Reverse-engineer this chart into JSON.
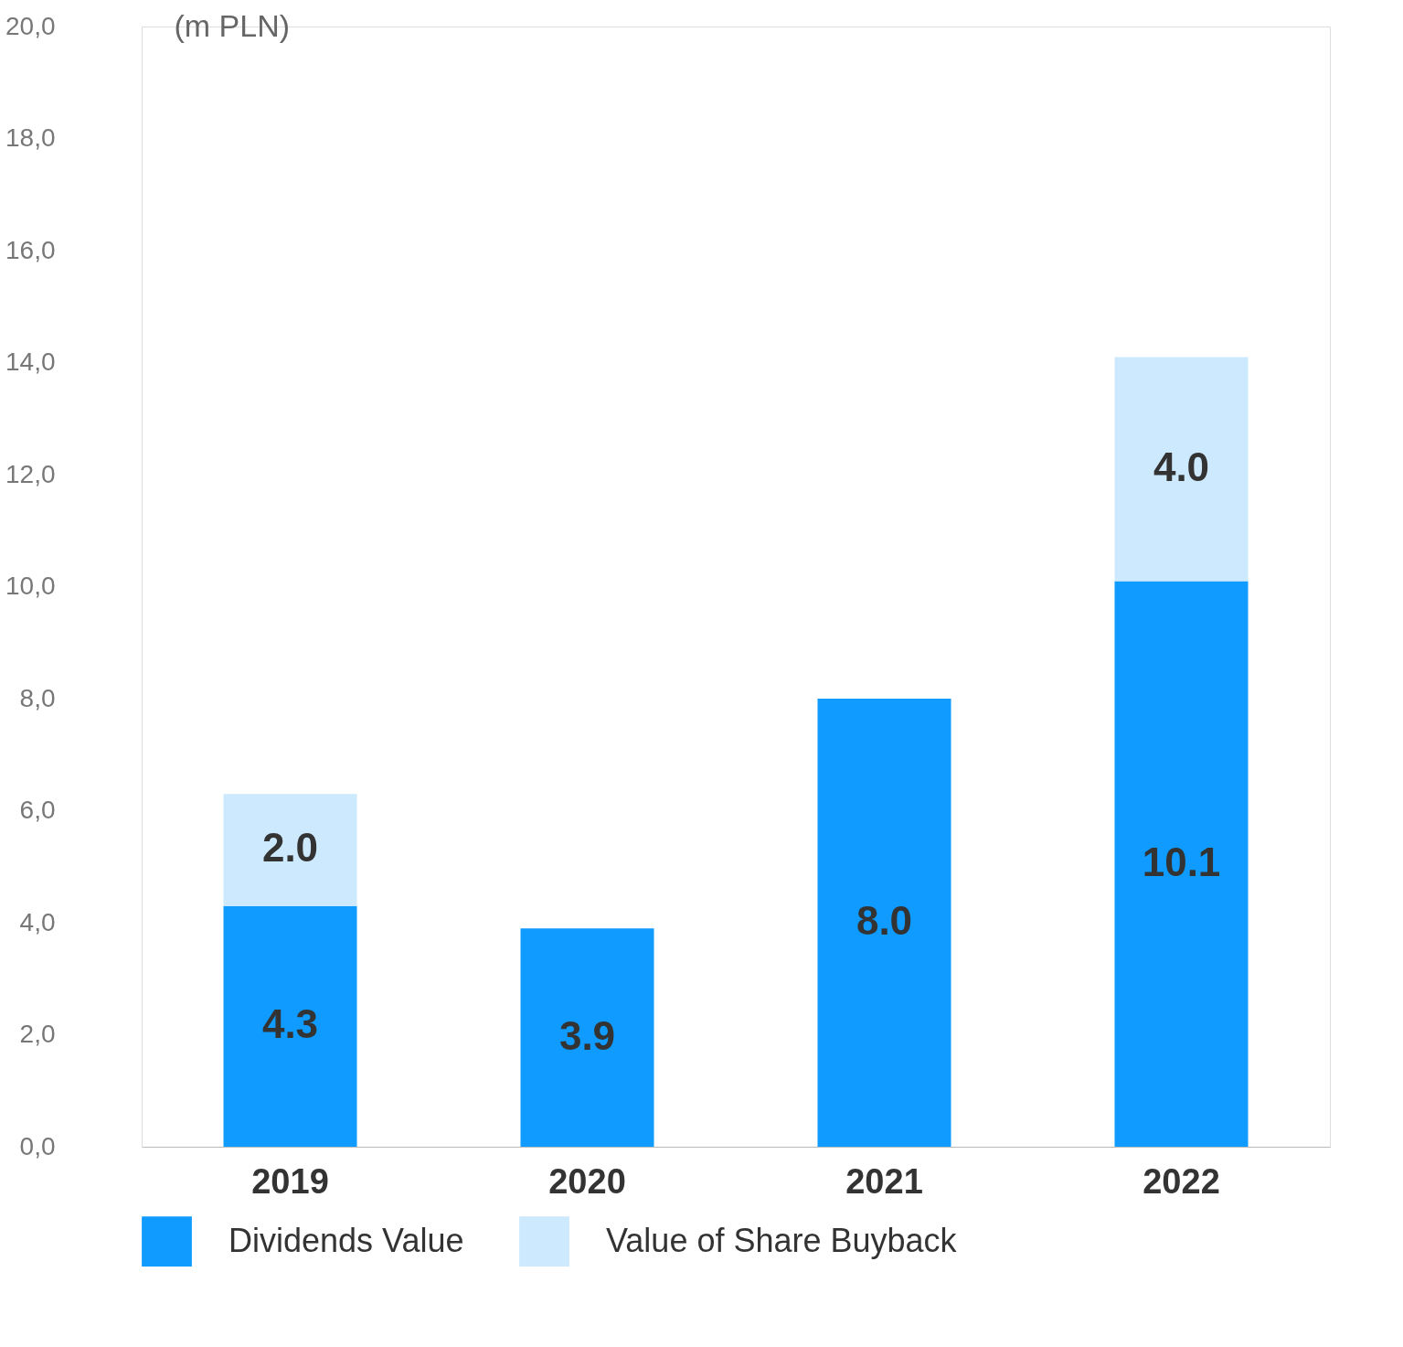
{
  "chart_data": {
    "type": "bar",
    "stacked": true,
    "ylabel": "(m PLN)",
    "categories": [
      "2019",
      "2020",
      "2021",
      "2022"
    ],
    "series": [
      {
        "name": "Dividends Value",
        "color": "#0f9bff",
        "values": [
          4.3,
          3.9,
          8.0,
          10.1
        ],
        "value_labels": [
          "4.3",
          "3.9",
          "8.0",
          "10.1"
        ]
      },
      {
        "name": "Value of Share Buyback",
        "color": "#cde9fd",
        "values": [
          2.0,
          null,
          null,
          4.0
        ],
        "value_labels": [
          "2.0",
          null,
          null,
          "4.0"
        ]
      }
    ],
    "ylim": [
      0,
      20
    ],
    "yticks": [
      {
        "value": 0,
        "label": "0,0"
      },
      {
        "value": 2,
        "label": "2,0"
      },
      {
        "value": 4,
        "label": "4,0"
      },
      {
        "value": 6,
        "label": "6,0"
      },
      {
        "value": 8,
        "label": "8,0"
      },
      {
        "value": 10,
        "label": "10,0"
      },
      {
        "value": 12,
        "label": "12,0"
      },
      {
        "value": 14,
        "label": "14,0"
      },
      {
        "value": 16,
        "label": "16,0"
      },
      {
        "value": 18,
        "label": "18,0"
      },
      {
        "value": 20,
        "label": "20,0"
      }
    ],
    "grid": false,
    "legend": "bottom left"
  }
}
